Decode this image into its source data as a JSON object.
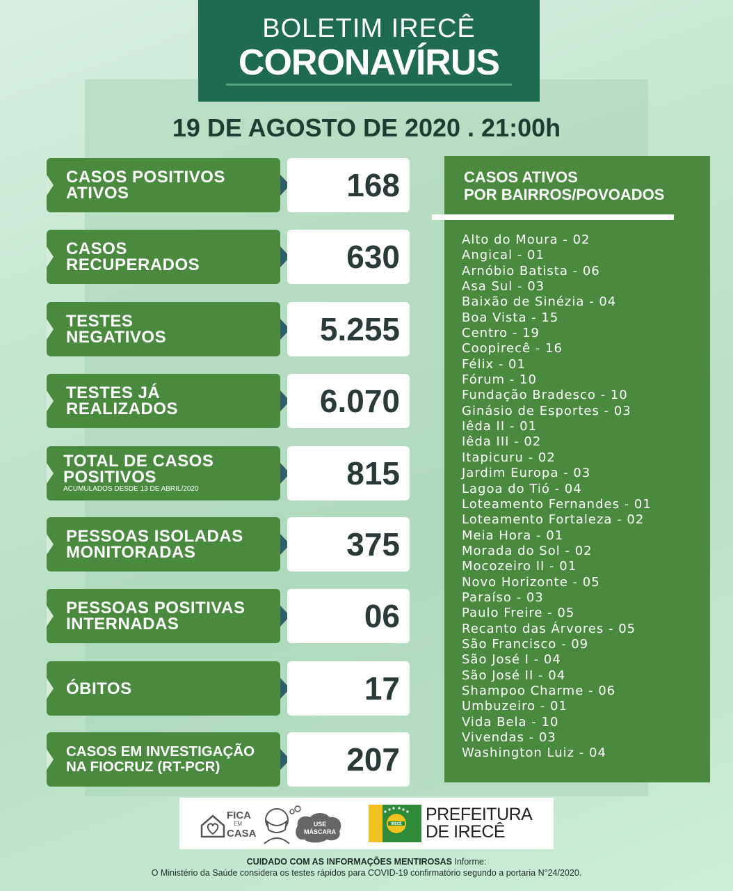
{
  "header": {
    "line1": "BOLETIM IRECÊ",
    "line2": "CORONAVÍRUS"
  },
  "date": "19 DE AGOSTO DE 2020 . 21:00h",
  "stats": [
    {
      "line1": "CASOS POSITIVOS",
      "line2": "ATIVOS",
      "value": "168"
    },
    {
      "line1": "CASOS",
      "line2": "RECUPERADOS",
      "value": "630"
    },
    {
      "line1": "TESTES",
      "line2": "NEGATIVOS",
      "value": "5.255"
    },
    {
      "line1": "TESTES JÁ",
      "line2": "REALIZADOS",
      "value": "6.070"
    },
    {
      "line1": "TOTAL DE CASOS",
      "line2": "POSITIVOS",
      "note": "ACUMULADOS DESDE 13 DE ABRIL/2020",
      "value": "815"
    },
    {
      "line1": "PESSOAS ISOLADAS",
      "line2": "MONITORADAS",
      "value": "375"
    },
    {
      "line1": "PESSOAS POSITIVAS",
      "line2": "INTERNADAS",
      "value": "06"
    },
    {
      "line1": "ÓBITOS",
      "value": "17"
    },
    {
      "line1": "CASOS EM INVESTIGAÇÃO",
      "line2": "NA FIOCRUZ (RT-PCR)",
      "value": "207"
    }
  ],
  "neighborhoods": {
    "title_line1": "CASOS ATIVOS",
    "title_line2": "POR BAIRROS/POVOADOS",
    "items": [
      "Alto do Moura - 02",
      "Angical - 01",
      "Arnóbio Batista - 06",
      "Asa Sul  - 03",
      "Baixão de Sinézia - 04",
      "Boa Vista - 15",
      "Centro - 19",
      "Coopirecê - 16",
      "Félix - 01",
      "Fórum - 10",
      "Fundação Bradesco - 10",
      "Ginásio de Esportes - 03",
      "Iêda II - 01",
      "Iêda III - 02",
      "Itapicuru - 02",
      "Jardim Europa - 03",
      "Lagoa do Tió - 04",
      "Loteamento Fernandes - 01",
      "Loteamento Fortaleza - 02",
      "Meia Hora - 01",
      "Morada do Sol - 02",
      "Mocozeiro II - 01",
      "Novo Horizonte - 05",
      "Paraíso - 03",
      "Paulo Freire - 05",
      "Recanto das Árvores - 05",
      "São Francisco - 09",
      "São José I - 04",
      "São José II - 04",
      "Shampoo Charme - 06",
      "Umbuzeiro - 01",
      "Vida Bela - 10",
      "Vivendas - 03",
      "Washington Luiz - 04"
    ]
  },
  "logos": {
    "fica_line1": "FICA",
    "fica_line2": "EM",
    "fica_line3": "CASA",
    "mask_line1": "USE",
    "mask_line2": "MÁSCARA",
    "flag_text": "IRECÊ",
    "pref_line1": "PREFEITURA",
    "pref_line2": "DE IRECÊ"
  },
  "footer": {
    "bold": "CUIDADO COM AS INFORMAÇÕES MENTIROSAS",
    "rest1": " Informe:",
    "line2": "O Ministério da Saúde considera os testes rápidos para COVID-19 confirmatório segundo a portaria N°24/2020."
  },
  "colors": {
    "header_bg": "#1f6b52",
    "label_green": "#4a8a3f",
    "arrow": "#2f5f6a",
    "value_text": "#2a3a38",
    "date_text": "#1d3d33"
  }
}
